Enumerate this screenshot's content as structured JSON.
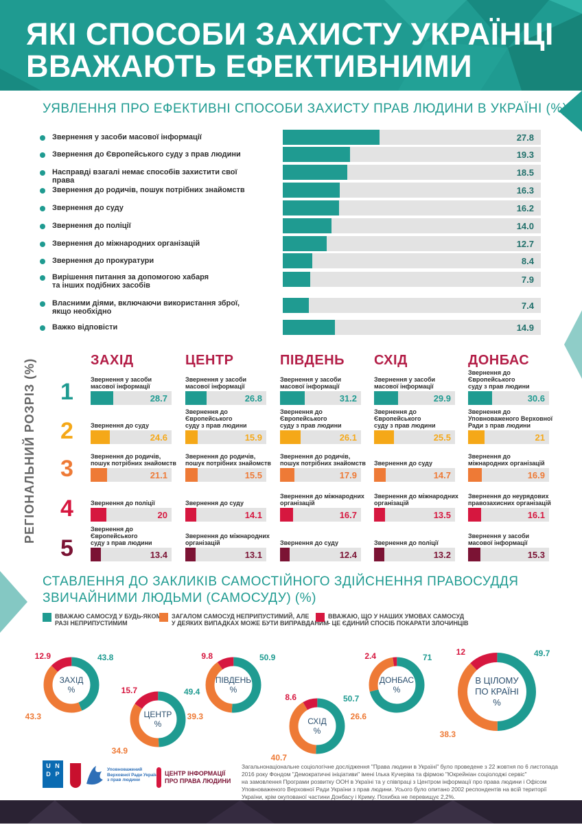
{
  "title_line1": "ЯКІ СПОСОБИ ЗАХИСТУ УКРАЇНЦІ",
  "title_line2": "ВВАЖАЮТЬ ЕФЕКТИВНИМИ",
  "colors": {
    "teal": "#1f9b91",
    "orange": "#f5a818",
    "orange2": "#ee7a36",
    "red": "#d6173f",
    "maroon": "#7b1334"
  },
  "chart_data": [
    {
      "type": "bar",
      "title": "УЯВЛЕННЯ ПРО ЕФЕКТИВНІ СПОСОБИ ЗАХИСТУ ПРАВ ЛЮДИНИ В УКРАЇНІ (%)",
      "categories": [
        "Звернення у засоби масової інформації",
        "Звернення до Європейського суду з прав людини",
        "Насправді взагалі немає способів захистити свої права",
        "Звернення до родичів, пошук потрібних знайомств",
        "Звернення до суду",
        "Звернення до поліції",
        "Звернення до міжнародних організацій",
        "Звернення до прокуратури",
        "Вирішення питання за допомогою хабаря та інших подібних засобів",
        "Власними діями, включаючи використання зброї, якщо необхідно",
        "Важко відповісти"
      ],
      "labels_display": [
        [
          "Звернення у засоби масової інформації"
        ],
        [
          "Звернення до Європейського суду з прав людини"
        ],
        [
          "Насправді взагалі немає способів захистити свої права"
        ],
        [
          "Звернення до родичів, пошук потрібних знайомств"
        ],
        [
          "Звернення до суду"
        ],
        [
          "Звернення до поліції"
        ],
        [
          "Звернення до міжнародних організацій"
        ],
        [
          "Звернення до прокуратури"
        ],
        [
          "Вирішення питання за допомогою хабаря",
          "та інших подібних засобів"
        ],
        [
          "Власними діями, включаючи використання зброї,",
          "якщо необхідно"
        ],
        [
          "Важко відповісти"
        ]
      ],
      "values": [
        27.8,
        19.3,
        18.5,
        16.3,
        16.2,
        14.0,
        12.7,
        8.4,
        7.9,
        7.4,
        14.9
      ],
      "value_labels": [
        "27.8",
        "19.3",
        "18.5",
        "16.3",
        "16.2",
        "14.0",
        "12.7",
        "8.4",
        "7.9",
        "7.4",
        "14.9"
      ],
      "xlim": [
        0,
        100
      ]
    },
    {
      "type": "bar",
      "title": "РЕГІОНАЛЬНИЙ РОЗРІЗ (%)",
      "ranks": [
        "1",
        "2",
        "3",
        "4",
        "5"
      ],
      "rank_colors": [
        "#1f9b91",
        "#f5a818",
        "#ee7a36",
        "#d6173f",
        "#7b1334"
      ],
      "regions": [
        {
          "name": "ЗАХІД",
          "items": [
            {
              "label": [
                "Звернення у засоби",
                "масової інформації"
              ],
              "value": 28.7,
              "display": "28.7"
            },
            {
              "label": [
                "Звернення до суду"
              ],
              "value": 24.6,
              "display": "24.6"
            },
            {
              "label": [
                "Звернення до родичів,",
                "пошук потрібних знайомств"
              ],
              "value": 21.1,
              "display": "21.1"
            },
            {
              "label": [
                "Звернення до поліції"
              ],
              "value": 20,
              "display": "20"
            },
            {
              "label": [
                "Звернення до Європейського",
                "суду з прав людини"
              ],
              "value": 13.4,
              "display": "13.4"
            }
          ]
        },
        {
          "name": "ЦЕНТР",
          "items": [
            {
              "label": [
                "Звернення у засоби",
                "масової інформації"
              ],
              "value": 26.8,
              "display": "26.8"
            },
            {
              "label": [
                "Звернення до Європейського",
                "суду з прав людини"
              ],
              "value": 15.9,
              "display": "15.9"
            },
            {
              "label": [
                "Звернення до родичів,",
                "пошук потрібних знайомств"
              ],
              "value": 15.5,
              "display": "15.5"
            },
            {
              "label": [
                "Звернення до суду"
              ],
              "value": 14.1,
              "display": "14.1"
            },
            {
              "label": [
                "Звернення до міжнародних",
                "організацій"
              ],
              "value": 13.1,
              "display": "13.1"
            }
          ]
        },
        {
          "name": "ПІВДЕНЬ",
          "items": [
            {
              "label": [
                "Звернення у засоби",
                "масової інформації"
              ],
              "value": 31.2,
              "display": "31.2"
            },
            {
              "label": [
                "Звернення до Європейського",
                "суду з прав людини"
              ],
              "value": 26.1,
              "display": "26.1"
            },
            {
              "label": [
                "Звернення до родичів,",
                "пошук потрібних знайомств"
              ],
              "value": 17.9,
              "display": "17.9"
            },
            {
              "label": [
                "Звернення до міжнародних",
                "організацій"
              ],
              "value": 16.7,
              "display": "16.7"
            },
            {
              "label": [
                "Звернення до суду"
              ],
              "value": 12.4,
              "display": "12.4"
            }
          ]
        },
        {
          "name": "СХІД",
          "items": [
            {
              "label": [
                "Звернення у засоби",
                "масової інформації"
              ],
              "value": 29.9,
              "display": "29.9"
            },
            {
              "label": [
                "Звернення до Європейського",
                "суду з прав людини"
              ],
              "value": 25.5,
              "display": "25.5"
            },
            {
              "label": [
                "Звернення до суду"
              ],
              "value": 14.7,
              "display": "14.7"
            },
            {
              "label": [
                "Звернення до міжнародних",
                "організацій"
              ],
              "value": 13.5,
              "display": "13.5"
            },
            {
              "label": [
                "Звернення до поліції"
              ],
              "value": 13.2,
              "display": "13.2"
            }
          ]
        },
        {
          "name": "ДОНБАС",
          "items": [
            {
              "label": [
                "Звернення до Європейського",
                "суду з прав людини"
              ],
              "value": 30.6,
              "display": "30.6"
            },
            {
              "label": [
                "Звернення до",
                "Уповноваженого Верховної",
                "Ради з прав людини"
              ],
              "value": 21,
              "display": "21"
            },
            {
              "label": [
                "Звернення до",
                "міжнародних організацій"
              ],
              "value": 16.9,
              "display": "16.9"
            },
            {
              "label": [
                "Звернення до неурядових",
                "правозахисних організацій"
              ],
              "value": 16.1,
              "display": "16.1"
            },
            {
              "label": [
                "Звернення у засоби",
                "масової інформації"
              ],
              "value": 15.3,
              "display": "15.3"
            }
          ]
        }
      ]
    },
    {
      "type": "pie",
      "title_line1": "СТАВЛЕННЯ ДО ЗАКЛИКІВ САМОСТІЙНОГО ЗДІЙСНЕННЯ ПРАВОСУДДЯ",
      "title_line2": "ЗВИЧАЙНИМИ ЛЮДЬМИ (САМОСУДУ) (%)",
      "legend": [
        {
          "lines": [
            "ВВАЖАЮ САМОСУД У БУДЬ-ЯКОМУ",
            "РАЗІ НЕПРИПУСТИМИМ"
          ],
          "color": "#1f9b91"
        },
        {
          "lines": [
            "ЗАГАЛОМ САМОСУД НЕПРИПУСТИМИЙ, АЛЕ",
            "У ДЕЯКИХ ВИПАДКАХ МОЖЕ БУТИ ВИПРАВДАНИМ"
          ],
          "color": "#ee7a36"
        },
        {
          "lines": [
            "ВВАЖАЮ, ЩО У НАШИХ УМОВАХ САМОСУД",
            "- ЦЕ ЄДИНИЙ СПОСІБ ПОКАРАТИ ЗЛОЧИНЦІВ"
          ],
          "color": "#d6173f"
        }
      ],
      "donuts": [
        {
          "name": [
            "ЗАХІД",
            "%"
          ],
          "values": [
            43.8,
            43.3,
            12.9
          ],
          "labels": [
            "43.8",
            "43.3",
            "12.9"
          ]
        },
        {
          "name": [
            "ЦЕНТР",
            "%"
          ],
          "values": [
            49.4,
            34.9,
            15.7
          ],
          "labels": [
            "49.4",
            "34.9",
            "15.7"
          ]
        },
        {
          "name": [
            "ПІВДЕНЬ",
            "%"
          ],
          "values": [
            50.9,
            39.3,
            9.8
          ],
          "labels": [
            "50.9",
            "39.3",
            "9.8"
          ]
        },
        {
          "name": [
            "СХІД",
            "%"
          ],
          "values": [
            50.7,
            40.7,
            8.6
          ],
          "labels": [
            "50.7",
            "40.7",
            "8.6"
          ]
        },
        {
          "name": [
            "ДОНБАС",
            "%"
          ],
          "values": [
            71,
            26.6,
            2.4
          ],
          "labels": [
            "71",
            "26.6",
            "2.4"
          ]
        },
        {
          "name": [
            "В ЦІЛОМУ",
            "ПО КРАЇНІ",
            "%"
          ],
          "values": [
            49.7,
            38.3,
            12
          ],
          "labels": [
            "49.7",
            "38.3",
            "12"
          ]
        }
      ]
    }
  ],
  "logos": {
    "undp": [
      "U",
      "N",
      "D",
      "P"
    ],
    "ombudsman": [
      "Уповноважений",
      "Верховної Ради України",
      "з прав людини"
    ],
    "center": [
      "ЦЕНТР ІНФОРМАЦІЇ",
      "ПРО ПРАВА ЛЮДИНИ"
    ]
  },
  "footer": {
    "lines": [
      "Загальнонаціональне соціологічне дослідження \"Права людини в Україні\" було проведене з 22 жовтня по 6 листопада",
      "2016 року Фондом \"Демократичні ініціативи\" імені Ілька Кучеріва та фірмою \"Юкрейніан соціолоджі сервіс\"",
      "на замовлення Програми розвитку ООН в Україні та у співпраці з Центром інформації про права людини і Офісом",
      "Уповноваженого Верховної Ради України з прав людини. Усього було опитано 2002 респондентів на всій території",
      "України, крім окупованої частини Донбасу і Криму. Похибка  не перевищує 2,2%."
    ]
  }
}
